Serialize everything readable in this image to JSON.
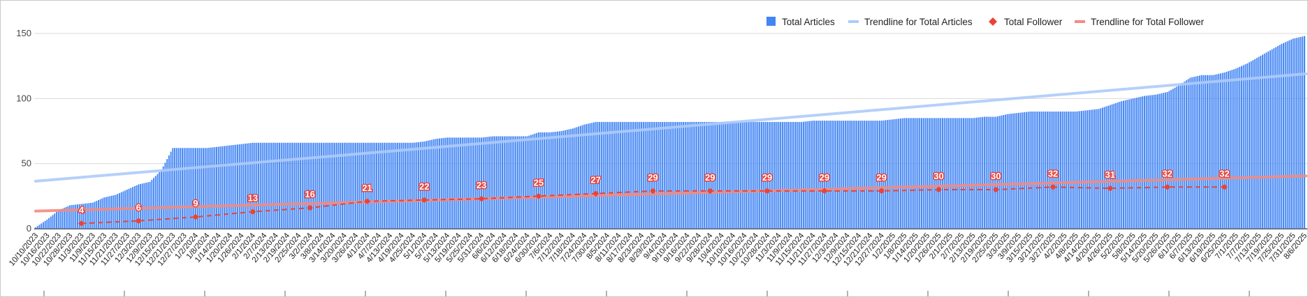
{
  "chart_data": {
    "type": "bar",
    "title": "",
    "xlabel": "",
    "ylabel": "",
    "ylim": [
      0,
      150
    ],
    "yticks": [
      0,
      50,
      100,
      150
    ],
    "grid": true,
    "legend_position": "top-right",
    "x_tick_labels": [
      "10/10/2023",
      "10/16/2023",
      "10/22/2023",
      "10/28/2023",
      "11/3/2023",
      "11/9/2023",
      "11/15/2023",
      "11/21/2023",
      "11/27/2023",
      "12/3/2023",
      "12/9/2023",
      "12/15/2023",
      "12/21/2023",
      "12/27/2023",
      "1/2/2024",
      "1/8/2024",
      "1/14/2024",
      "1/20/2024",
      "1/26/2024",
      "2/1/2024",
      "2/7/2024",
      "2/13/2024",
      "2/19/2024",
      "2/25/2024",
      "3/2/2024",
      "3/8/2024",
      "3/14/2024",
      "3/20/2024",
      "3/26/2024",
      "4/1/2024",
      "4/7/2024",
      "4/13/2024",
      "4/19/2024",
      "4/25/2024",
      "5/1/2024",
      "5/7/2024",
      "5/13/2024",
      "5/19/2024",
      "5/25/2024",
      "5/31/2024",
      "6/6/2024",
      "6/12/2024",
      "6/18/2024",
      "6/24/2024",
      "6/30/2024",
      "7/6/2024",
      "7/12/2024",
      "7/18/2024",
      "7/24/2024",
      "7/30/2024",
      "8/5/2024",
      "8/11/2024",
      "8/17/2024",
      "8/23/2024",
      "8/29/2024",
      "9/4/2024",
      "9/10/2024",
      "9/16/2024",
      "9/22/2024",
      "9/28/2024",
      "10/4/2024",
      "10/10/2024",
      "10/16/2024",
      "10/22/2024",
      "10/28/2024",
      "11/3/2024",
      "11/9/2024",
      "11/15/2024",
      "11/21/2024",
      "11/27/2024",
      "12/3/2024",
      "12/9/2024",
      "12/15/2024",
      "12/21/2024",
      "12/27/2024",
      "1/2/2025",
      "1/8/2025",
      "1/14/2025",
      "1/20/2025",
      "1/26/2025",
      "2/1/2025",
      "2/7/2025",
      "2/13/2025",
      "2/19/2025",
      "2/25/2025",
      "3/3/2025",
      "3/9/2025",
      "3/15/2025",
      "3/21/2025",
      "3/27/2025",
      "4/2/2025",
      "4/8/2025",
      "4/14/2025",
      "4/20/2025",
      "4/26/2025",
      "5/2/2025",
      "5/8/2025",
      "5/14/2025",
      "5/20/2025",
      "5/26/2025",
      "6/1/2025",
      "6/7/2025",
      "6/13/2025",
      "6/19/2025",
      "6/25/2025",
      "7/1/2025",
      "7/7/2025",
      "7/13/2025",
      "7/19/2025",
      "7/25/2025",
      "7/31/2025",
      "8/6/2025"
    ],
    "series": [
      {
        "name": "Total Articles",
        "kind": "bar",
        "color": "#4285f4",
        "values": [
          1,
          7,
          14,
          18,
          19,
          20,
          24,
          26,
          30,
          34,
          36,
          45,
          62,
          62,
          62,
          62,
          63,
          64,
          65,
          66,
          66,
          66,
          66,
          66,
          66,
          66,
          66,
          66,
          66,
          66,
          66,
          66,
          66,
          66,
          67,
          69,
          70,
          70,
          70,
          70,
          71,
          71,
          71,
          71,
          74,
          74,
          75,
          77,
          80,
          82,
          82,
          82,
          82,
          82,
          82,
          82,
          82,
          82,
          82,
          82,
          82,
          82,
          82,
          82,
          82,
          82,
          82,
          82,
          83,
          83,
          83,
          83,
          83,
          83,
          83,
          84,
          85,
          85,
          85,
          85,
          85,
          85,
          85,
          86,
          86,
          88,
          89,
          90,
          90,
          90,
          90,
          90,
          91,
          92,
          95,
          98,
          100,
          102,
          103,
          105,
          110,
          116,
          118,
          118,
          120,
          123,
          127,
          132,
          137,
          142,
          146,
          148
        ]
      },
      {
        "name": "Trendline for Total Articles",
        "kind": "trendline",
        "color": "#aecbfa",
        "start": 36.5,
        "end": 119
      },
      {
        "name": "Total Follower",
        "kind": "points",
        "color": "#ea4335",
        "points": [
          {
            "x": "11/3/2023",
            "value": 4
          },
          {
            "x": "12/3/2023",
            "value": 6
          },
          {
            "x": "1/2/2024",
            "value": 9
          },
          {
            "x": "2/1/2024",
            "value": 13
          },
          {
            "x": "3/2/2024",
            "value": 16
          },
          {
            "x": "4/1/2024",
            "value": 21
          },
          {
            "x": "5/1/2024",
            "value": 22
          },
          {
            "x": "5/31/2024",
            "value": 23
          },
          {
            "x": "6/30/2024",
            "value": 25
          },
          {
            "x": "7/30/2024",
            "value": 27
          },
          {
            "x": "8/29/2024",
            "value": 29
          },
          {
            "x": "9/28/2024",
            "value": 29
          },
          {
            "x": "10/28/2024",
            "value": 29
          },
          {
            "x": "11/27/2024",
            "value": 29
          },
          {
            "x": "12/27/2024",
            "value": 29
          },
          {
            "x": "1/26/2025",
            "value": 30
          },
          {
            "x": "2/25/2025",
            "value": 30
          },
          {
            "x": "3/27/2025",
            "value": 32
          },
          {
            "x": "4/26/2025",
            "value": 31
          },
          {
            "x": "5/26/2025",
            "value": 32
          },
          {
            "x": "6/25/2025",
            "value": 32
          }
        ]
      },
      {
        "name": "Trendline for Total Follower",
        "kind": "trendline",
        "color": "#f28b82",
        "start": 13.5,
        "end": 40.5
      }
    ]
  }
}
